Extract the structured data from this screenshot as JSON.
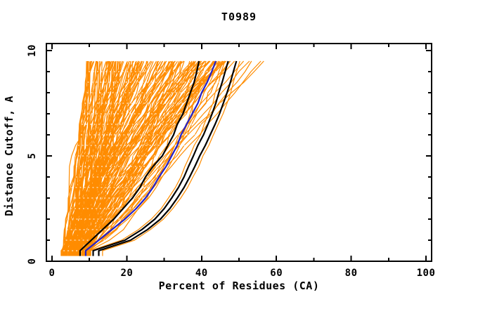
{
  "page": {
    "background_color": "#ffffff"
  },
  "chart_data": {
    "type": "line",
    "title": "T0989",
    "xlabel": "Percent of Residues (CA)",
    "ylabel": "Distance Cutoff, A",
    "xlim": [
      0,
      100
    ],
    "ylim": [
      0,
      10
    ],
    "grid": false,
    "legend": null,
    "x_major_ticks": [
      0,
      20,
      40,
      60,
      80,
      100
    ],
    "x_minor_ticks": [
      10,
      30,
      50,
      70,
      90
    ],
    "x_tick_labels": [
      "0",
      "20",
      "40",
      "60",
      "80",
      "100"
    ],
    "y_major_ticks": [
      0,
      5,
      10
    ],
    "y_minor_ticks": [
      1,
      2,
      3,
      4,
      6,
      7,
      8,
      9
    ],
    "y_tick_labels": [
      "0",
      "5",
      "10"
    ],
    "distance_levels": [
      0.5,
      1.0,
      1.5,
      2.0,
      2.5,
      3.0,
      3.5,
      4.0,
      4.5,
      5.0,
      5.5,
      6.0,
      6.5,
      7.0,
      7.5,
      8.0,
      8.5,
      9.0,
      9.5
    ],
    "series": [
      {
        "name": "model-curve-black-1",
        "color": "#000000",
        "line_width": 2.2,
        "x_percent": [
          7.5,
          10.5,
          13.5,
          16.5,
          19,
          21.5,
          23.5,
          25,
          27,
          29.5,
          31,
          32.5,
          33.5,
          35,
          36,
          37,
          38,
          38.7,
          39.3
        ]
      },
      {
        "name": "model-curve-blue",
        "color": "#2222cc",
        "line_width": 2.2,
        "x_percent": [
          9,
          12.5,
          16,
          19.5,
          22.5,
          25,
          27,
          28.6,
          30.5,
          32,
          33.5,
          34.5,
          36,
          37.5,
          39,
          40,
          41.5,
          42.7,
          43.8
        ]
      },
      {
        "name": "model-curve-black-2",
        "color": "#000000",
        "line_width": 2.2,
        "x_percent": [
          11,
          19.5,
          24,
          27.5,
          30,
          32,
          33.8,
          35.3,
          36.5,
          37.8,
          39,
          40.5,
          41.7,
          42.8,
          43.8,
          44.6,
          45.5,
          46.3,
          47.1
        ]
      },
      {
        "name": "model-curve-black-3",
        "color": "#000000",
        "line_width": 2.2,
        "x_percent": [
          12.5,
          21,
          25.5,
          29,
          31.5,
          33.5,
          35.3,
          36.8,
          38.2,
          39.5,
          41,
          42.3,
          43.6,
          44.8,
          45.8,
          46.8,
          47.7,
          48.5,
          49.3
        ]
      }
    ],
    "ensemble": {
      "name": "server-model-curves",
      "color": "#ff8c00",
      "count": 150,
      "seed": 987654321,
      "start_percent_range": [
        2.5,
        10.5
      ],
      "top_percent_range": [
        9,
        48
      ],
      "sparse_right_tops_percent": [
        50.5,
        52.2,
        53.8,
        55.2,
        56.6
      ],
      "companion_offsets": [
        {
          "series_index": 3,
          "dx": 0.9
        },
        {
          "series_index": 2,
          "dx": -0.9
        },
        {
          "series_index": 1,
          "dx": 0.8
        }
      ]
    },
    "colors": {
      "orange": "#ff8c00",
      "blue": "#2222cc",
      "black": "#000000",
      "frame": "#000000",
      "background": "#ffffff"
    }
  }
}
